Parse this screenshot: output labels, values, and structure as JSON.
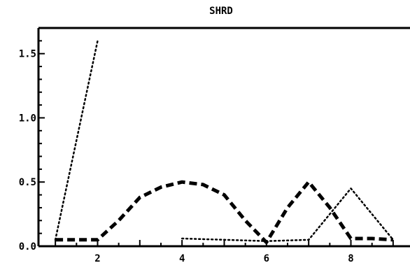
{
  "chart_data": {
    "type": "line",
    "title": "SHRD",
    "xlabel": "",
    "ylabel": "",
    "xlim": [
      0.6,
      9.4
    ],
    "ylim": [
      0.0,
      1.7
    ],
    "x_ticks": [
      2,
      4,
      6,
      8
    ],
    "x_tick_labels": [
      "2",
      "4",
      "6",
      "8"
    ],
    "y_ticks": [
      0.0,
      0.5,
      1.0,
      1.5
    ],
    "y_tick_labels": [
      "0.0",
      "0.5",
      "1.0",
      "1.5"
    ],
    "grid": false,
    "series": [
      {
        "style": "dashed",
        "color": "#000000",
        "x": [
          1,
          1.25,
          1.5,
          1.75,
          2,
          2.5,
          3,
          3.5,
          4,
          4.5,
          5,
          5.5,
          6,
          6.5,
          7,
          7.5,
          8,
          8.5,
          9
        ],
        "y": [
          0.05,
          0.05,
          0.05,
          0.05,
          0.05,
          0.2,
          0.38,
          0.46,
          0.5,
          0.48,
          0.4,
          0.2,
          0.03,
          0.3,
          0.5,
          0.3,
          0.06,
          0.06,
          0.05
        ]
      },
      {
        "style": "dotted",
        "color": "#000000",
        "x": [
          1,
          2
        ],
        "y": [
          0.05,
          1.6
        ]
      },
      {
        "style": "dotted",
        "color": "#000000",
        "x": [
          4,
          5,
          6,
          7,
          8,
          9
        ],
        "y": [
          0.06,
          0.05,
          0.04,
          0.05,
          0.45,
          0.05
        ]
      }
    ]
  }
}
